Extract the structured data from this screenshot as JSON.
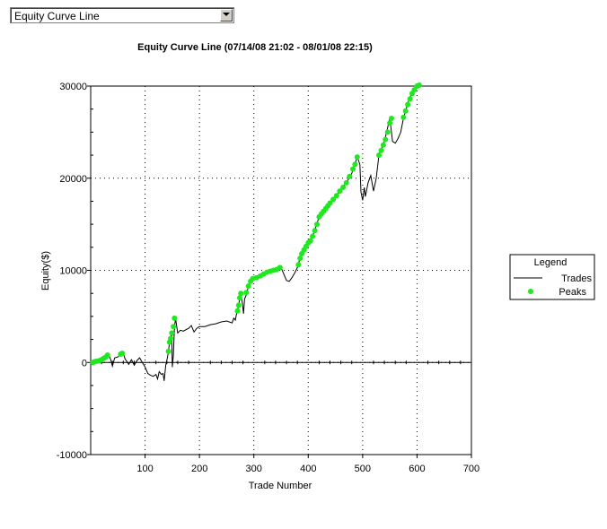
{
  "selector": {
    "value": "Equity Curve Line",
    "icon": "chevron-down-icon"
  },
  "chart_data": {
    "type": "line",
    "title": "Equity Curve Line (07/14/08 21:02 - 08/01/08 22:15)",
    "xlabel": "Trade Number",
    "ylabel": "Equity($)",
    "xlim": [
      0,
      700
    ],
    "ylim": [
      -10000,
      30000
    ],
    "x_ticks": [
      100,
      200,
      300,
      400,
      500,
      600,
      700
    ],
    "y_ticks": [
      -10000,
      0,
      10000,
      20000,
      30000
    ],
    "grid": true,
    "legend": {
      "title": "Legend",
      "position": "right"
    },
    "series": [
      {
        "name": "Trades",
        "mark": "line",
        "color": "#000000",
        "points": [
          [
            1,
            0
          ],
          [
            10,
            100
          ],
          [
            20,
            300
          ],
          [
            28,
            600
          ],
          [
            33,
            800
          ],
          [
            37,
            300
          ],
          [
            40,
            -400
          ],
          [
            44,
            500
          ],
          [
            50,
            600
          ],
          [
            55,
            900
          ],
          [
            60,
            1000
          ],
          [
            63,
            400
          ],
          [
            70,
            -200
          ],
          [
            75,
            300
          ],
          [
            80,
            -300
          ],
          [
            85,
            200
          ],
          [
            90,
            500
          ],
          [
            95,
            0
          ],
          [
            100,
            -500
          ],
          [
            105,
            -1200
          ],
          [
            110,
            -1400
          ],
          [
            115,
            -1500
          ],
          [
            120,
            -1300
          ],
          [
            123,
            -1800
          ],
          [
            126,
            -1000
          ],
          [
            130,
            -1300
          ],
          [
            133,
            -1200
          ],
          [
            135,
            -2000
          ],
          [
            138,
            -300
          ],
          [
            141,
            500
          ],
          [
            143,
            1200
          ],
          [
            145,
            2200
          ],
          [
            147,
            2600
          ],
          [
            149,
            3200
          ],
          [
            150,
            -500
          ],
          [
            152,
            800
          ],
          [
            154,
            3800
          ],
          [
            156,
            4800
          ],
          [
            160,
            3200
          ],
          [
            165,
            3500
          ],
          [
            170,
            3400
          ],
          [
            180,
            3700
          ],
          [
            185,
            4000
          ],
          [
            190,
            3300
          ],
          [
            195,
            3700
          ],
          [
            200,
            3900
          ],
          [
            210,
            3900
          ],
          [
            220,
            4100
          ],
          [
            230,
            4200
          ],
          [
            240,
            4400
          ],
          [
            250,
            4500
          ],
          [
            260,
            4300
          ],
          [
            263,
            4800
          ],
          [
            266,
            4600
          ],
          [
            268,
            5200
          ],
          [
            270,
            5600
          ],
          [
            272,
            6200
          ],
          [
            274,
            7000
          ],
          [
            276,
            7500
          ],
          [
            279,
            6400
          ],
          [
            281,
            5300
          ],
          [
            283,
            6900
          ],
          [
            286,
            7300
          ],
          [
            290,
            8300
          ],
          [
            295,
            8800
          ],
          [
            300,
            9100
          ],
          [
            310,
            9300
          ],
          [
            320,
            9700
          ],
          [
            330,
            9900
          ],
          [
            340,
            10100
          ],
          [
            350,
            10300
          ],
          [
            355,
            9600
          ],
          [
            360,
            8900
          ],
          [
            365,
            8800
          ],
          [
            370,
            9200
          ],
          [
            375,
            9700
          ],
          [
            380,
            10300
          ],
          [
            385,
            11300
          ],
          [
            390,
            12000
          ],
          [
            400,
            13000
          ],
          [
            410,
            14000
          ],
          [
            420,
            15800
          ],
          [
            430,
            16500
          ],
          [
            440,
            17300
          ],
          [
            450,
            18000
          ],
          [
            460,
            18800
          ],
          [
            470,
            19500
          ],
          [
            480,
            20500
          ],
          [
            490,
            22300
          ],
          [
            495,
            21500
          ],
          [
            497,
            18500
          ],
          [
            500,
            17600
          ],
          [
            503,
            19000
          ],
          [
            505,
            18000
          ],
          [
            510,
            19500
          ],
          [
            515,
            20300
          ],
          [
            520,
            18600
          ],
          [
            525,
            20000
          ],
          [
            530,
            22500
          ],
          [
            540,
            24000
          ],
          [
            550,
            26500
          ],
          [
            555,
            24000
          ],
          [
            560,
            23800
          ],
          [
            565,
            24300
          ],
          [
            570,
            25000
          ],
          [
            575,
            26500
          ],
          [
            580,
            27500
          ],
          [
            585,
            28500
          ],
          [
            590,
            29200
          ],
          [
            595,
            29600
          ],
          [
            600,
            30000
          ],
          [
            604,
            30100
          ]
        ]
      },
      {
        "name": "Peaks",
        "mark": "scatter",
        "color": "#1ee81e",
        "points": [
          [
            4,
            0
          ],
          [
            8,
            100
          ],
          [
            12,
            150
          ],
          [
            16,
            200
          ],
          [
            20,
            300
          ],
          [
            24,
            450
          ],
          [
            28,
            600
          ],
          [
            31,
            800
          ],
          [
            55,
            900
          ],
          [
            58,
            1000
          ],
          [
            143,
            1200
          ],
          [
            145,
            2200
          ],
          [
            147,
            2600
          ],
          [
            149,
            3200
          ],
          [
            152,
            3900
          ],
          [
            154,
            4800
          ],
          [
            270,
            5600
          ],
          [
            272,
            6200
          ],
          [
            274,
            7000
          ],
          [
            276,
            7500
          ],
          [
            286,
            7600
          ],
          [
            290,
            8300
          ],
          [
            294,
            8800
          ],
          [
            298,
            9100
          ],
          [
            305,
            9200
          ],
          [
            312,
            9400
          ],
          [
            318,
            9600
          ],
          [
            324,
            9800
          ],
          [
            330,
            9900
          ],
          [
            336,
            10000
          ],
          [
            342,
            10100
          ],
          [
            348,
            10300
          ],
          [
            382,
            10600
          ],
          [
            385,
            11300
          ],
          [
            388,
            11800
          ],
          [
            392,
            12200
          ],
          [
            396,
            12600
          ],
          [
            400,
            13000
          ],
          [
            404,
            13200
          ],
          [
            408,
            13700
          ],
          [
            412,
            14300
          ],
          [
            416,
            15000
          ],
          [
            420,
            15800
          ],
          [
            424,
            16100
          ],
          [
            428,
            16400
          ],
          [
            432,
            16700
          ],
          [
            436,
            17000
          ],
          [
            440,
            17300
          ],
          [
            446,
            17700
          ],
          [
            452,
            18100
          ],
          [
            458,
            18600
          ],
          [
            464,
            19000
          ],
          [
            470,
            19500
          ],
          [
            476,
            20200
          ],
          [
            482,
            21000
          ],
          [
            486,
            21500
          ],
          [
            490,
            22300
          ],
          [
            530,
            22500
          ],
          [
            534,
            23000
          ],
          [
            538,
            23600
          ],
          [
            542,
            24200
          ],
          [
            546,
            25000
          ],
          [
            550,
            26000
          ],
          [
            553,
            26500
          ],
          [
            575,
            26600
          ],
          [
            579,
            27300
          ],
          [
            583,
            28000
          ],
          [
            587,
            28600
          ],
          [
            591,
            29200
          ],
          [
            595,
            29600
          ],
          [
            600,
            30000
          ],
          [
            604,
            30100
          ]
        ]
      }
    ]
  }
}
